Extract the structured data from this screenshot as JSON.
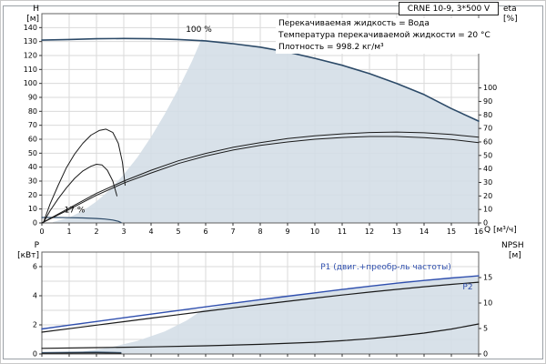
{
  "title_box": {
    "label": "CRNE 10-9, 3*500 V"
  },
  "info_box": {
    "lines": [
      "Перекачиваемая жидкость = Вода",
      "Температура перекачиваемой жидкости = 20 °C",
      "Плотность = 998.2 кг/м³"
    ]
  },
  "axis_labels": {
    "h": [
      "H",
      "[м]"
    ],
    "eta": [
      "eta",
      "[%]"
    ],
    "p": [
      "P",
      "[кВт]"
    ],
    "npsh": [
      "NPSH",
      "[м]"
    ],
    "q": "Q [м³/ч]"
  },
  "colors": {
    "grid": "#dadada",
    "axis": "#606060",
    "envelope": "#d3dde6",
    "curve_dark_blue": "#2c4a68",
    "curve_black": "#1a1a1a",
    "curve_blue": "#2f4fae"
  },
  "chart_data": [
    {
      "name": "hq-chart",
      "type": "line",
      "show_x_labels": true,
      "x": {
        "label": "Q [м³/ч]",
        "min": 0,
        "max": 16,
        "ticks": [
          0,
          1,
          2,
          3,
          4,
          5,
          6,
          7,
          8,
          9,
          10,
          11,
          12,
          13,
          14,
          15,
          16
        ],
        "grid": [
          1,
          2,
          3,
          4,
          5,
          6,
          7,
          8,
          9,
          10,
          11,
          12,
          13,
          14,
          15
        ]
      },
      "y_left": {
        "label": "H [м]",
        "min": 0,
        "max": 150,
        "ticks": [
          0,
          10,
          20,
          30,
          40,
          50,
          60,
          70,
          80,
          90,
          100,
          110,
          120,
          130,
          140
        ],
        "grid": [
          10,
          20,
          30,
          40,
          50,
          60,
          70,
          80,
          90,
          100,
          110,
          120,
          130,
          140
        ]
      },
      "y_right": {
        "label": "eta [%]",
        "min": 0,
        "max": 155,
        "ticks": [
          0,
          10,
          20,
          30,
          40,
          50,
          60,
          70,
          80,
          90,
          100
        ]
      },
      "envelope": [
        [
          0.4,
          0
        ],
        [
          0.4,
          0.6
        ],
        [
          1,
          3.9
        ],
        [
          1.5,
          8.7
        ],
        [
          2,
          15.4
        ],
        [
          2.5,
          24
        ],
        [
          3,
          34.7
        ],
        [
          3.5,
          47
        ],
        [
          4,
          61.6
        ],
        [
          4.5,
          78
        ],
        [
          5,
          96
        ],
        [
          5.5,
          116
        ],
        [
          5.85,
          131.8
        ],
        [
          6,
          130.5
        ],
        [
          7,
          128.5
        ],
        [
          8,
          126
        ],
        [
          9,
          122.5
        ],
        [
          10,
          118
        ],
        [
          11,
          113
        ],
        [
          12,
          107
        ],
        [
          13,
          100
        ],
        [
          14,
          92
        ],
        [
          15,
          82
        ],
        [
          16,
          73
        ],
        [
          16,
          0
        ]
      ],
      "series": [
        {
          "name": "head-100pct",
          "axis": "left",
          "color": "#2c4a68",
          "width": 1.6,
          "points": [
            [
              0,
              131
            ],
            [
              1,
              131.5
            ],
            [
              2,
              132
            ],
            [
              3,
              132.2
            ],
            [
              4,
              132
            ],
            [
              5,
              131.5
            ],
            [
              6,
              130.5
            ],
            [
              7,
              128.5
            ],
            [
              8,
              126
            ],
            [
              9,
              122.5
            ],
            [
              10,
              118
            ],
            [
              11,
              113
            ],
            [
              12,
              107
            ],
            [
              13,
              100
            ],
            [
              14,
              92
            ],
            [
              15,
              82
            ],
            [
              16,
              73
            ]
          ]
        },
        {
          "name": "head-17pct",
          "axis": "left",
          "color": "#2c4a68",
          "width": 1.2,
          "points": [
            [
              0,
              3.9
            ],
            [
              0.5,
              3.9
            ],
            [
              1,
              3.8
            ],
            [
              1.5,
              3.6
            ],
            [
              2,
              3.2
            ],
            [
              2.3,
              2.8
            ],
            [
              2.6,
              2.1
            ],
            [
              2.8,
              1.2
            ],
            [
              2.9,
              0.3
            ]
          ]
        },
        {
          "name": "eta-pump",
          "axis": "right",
          "color": "#1a1a1a",
          "width": 1,
          "points": [
            [
              0,
              0
            ],
            [
              1,
              11
            ],
            [
              2,
              22
            ],
            [
              3,
              31
            ],
            [
              4,
              39
            ],
            [
              5,
              46
            ],
            [
              6,
              51.5
            ],
            [
              7,
              56
            ],
            [
              8,
              59.5
            ],
            [
              9,
              62.5
            ],
            [
              10,
              64.5
            ],
            [
              11,
              66
            ],
            [
              12,
              67
            ],
            [
              13,
              67.3
            ],
            [
              14,
              66.8
            ],
            [
              15,
              65.5
            ],
            [
              16,
              63.5
            ]
          ]
        },
        {
          "name": "eta-total",
          "axis": "right",
          "color": "#1a1a1a",
          "width": 1,
          "points": [
            [
              0,
              0
            ],
            [
              1,
              10
            ],
            [
              2,
              20.5
            ],
            [
              3,
              29.5
            ],
            [
              4,
              37
            ],
            [
              5,
              44
            ],
            [
              6,
              49.5
            ],
            [
              7,
              54
            ],
            [
              8,
              57.5
            ],
            [
              9,
              60
            ],
            [
              10,
              62
            ],
            [
              11,
              63.3
            ],
            [
              12,
              64
            ],
            [
              13,
              64
            ],
            [
              14,
              63.2
            ],
            [
              15,
              61.8
            ],
            [
              16,
              59.5
            ]
          ]
        },
        {
          "name": "eta-duty-upper",
          "axis": "right",
          "color": "#1a1a1a",
          "width": 1,
          "points": [
            [
              0.05,
              0
            ],
            [
              0.3,
              14
            ],
            [
              0.6,
              28
            ],
            [
              0.9,
              41
            ],
            [
              1.2,
              51
            ],
            [
              1.5,
              59
            ],
            [
              1.8,
              65
            ],
            [
              2.1,
              68.5
            ],
            [
              2.35,
              69.5
            ],
            [
              2.6,
              67
            ],
            [
              2.8,
              59
            ],
            [
              2.95,
              45
            ],
            [
              3.05,
              28
            ]
          ]
        },
        {
          "name": "eta-duty-lower",
          "axis": "right",
          "color": "#1a1a1a",
          "width": 1,
          "points": [
            [
              0.05,
              0
            ],
            [
              0.3,
              9
            ],
            [
              0.6,
              18
            ],
            [
              0.9,
              26
            ],
            [
              1.2,
              33
            ],
            [
              1.5,
              38.5
            ],
            [
              1.8,
              42
            ],
            [
              2,
              43.5
            ],
            [
              2.2,
              43
            ],
            [
              2.4,
              39
            ],
            [
              2.6,
              31
            ],
            [
              2.75,
              20
            ]
          ]
        }
      ],
      "annotations": [
        {
          "text": "100 %",
          "q": 5.75,
          "v": 137,
          "axis": "left",
          "color": "#000000",
          "anchor": "middle"
        },
        {
          "text": "17 %",
          "q": 1.2,
          "v": 7.5,
          "axis": "left",
          "color": "#000000",
          "anchor": "middle"
        }
      ]
    },
    {
      "name": "power-npsh-chart",
      "type": "line",
      "show_x_labels": false,
      "x": {
        "label": "Q [м³/ч]",
        "min": 0,
        "max": 16,
        "ticks": [
          0,
          1,
          2,
          3,
          4,
          5,
          6,
          7,
          8,
          9,
          10,
          11,
          12,
          13,
          14,
          15,
          16
        ],
        "grid": [
          1,
          2,
          3,
          4,
          5,
          6,
          7,
          8,
          9,
          10,
          11,
          12,
          13,
          14,
          15
        ]
      },
      "y_left": {
        "label": "P [кВт]",
        "min": 0,
        "max": 7,
        "ticks": [
          0,
          2,
          4,
          6
        ],
        "grid": [
          1,
          2,
          3,
          4,
          5,
          6
        ]
      },
      "y_right": {
        "label": "NPSH [м]",
        "min": 0,
        "max": 20,
        "ticks": [
          0,
          5,
          10,
          15
        ]
      },
      "envelope": [
        [
          0.4,
          0
        ],
        [
          0.8,
          0.06
        ],
        [
          1.5,
          0.16
        ],
        [
          2.5,
          0.45
        ],
        [
          3.5,
          0.9
        ],
        [
          4.5,
          1.55
        ],
        [
          5.3,
          2.3
        ],
        [
          5.9,
          3.05
        ],
        [
          7,
          3.49
        ],
        [
          8,
          3.73
        ],
        [
          9,
          3.97
        ],
        [
          10,
          4.2
        ],
        [
          11,
          4.43
        ],
        [
          12,
          4.65
        ],
        [
          13,
          4.86
        ],
        [
          14,
          5.05
        ],
        [
          15,
          5.22
        ],
        [
          16,
          5.37
        ],
        [
          16,
          0
        ]
      ],
      "series": [
        {
          "name": "p1-curve",
          "axis": "left",
          "color": "#2f4fae",
          "width": 1.4,
          "points": [
            [
              0,
              1.72
            ],
            [
              1,
              1.98
            ],
            [
              2,
              2.23
            ],
            [
              3,
              2.49
            ],
            [
              4,
              2.74
            ],
            [
              5,
              2.99
            ],
            [
              6,
              3.24
            ],
            [
              7,
              3.49
            ],
            [
              8,
              3.73
            ],
            [
              9,
              3.97
            ],
            [
              10,
              4.2
            ],
            [
              11,
              4.43
            ],
            [
              12,
              4.65
            ],
            [
              13,
              4.86
            ],
            [
              14,
              5.05
            ],
            [
              15,
              5.22
            ],
            [
              16,
              5.37
            ]
          ]
        },
        {
          "name": "p2-curve",
          "axis": "left",
          "color": "#1a1a1a",
          "width": 1.2,
          "points": [
            [
              0,
              1.5
            ],
            [
              1,
              1.74
            ],
            [
              2,
              1.98
            ],
            [
              3,
              2.22
            ],
            [
              4,
              2.46
            ],
            [
              5,
              2.7
            ],
            [
              6,
              2.94
            ],
            [
              7,
              3.17
            ],
            [
              8,
              3.4
            ],
            [
              9,
              3.62
            ],
            [
              10,
              3.84
            ],
            [
              11,
              4.05
            ],
            [
              12,
              4.25
            ],
            [
              13,
              4.44
            ],
            [
              14,
              4.62
            ],
            [
              15,
              4.78
            ],
            [
              16,
              4.93
            ]
          ]
        },
        {
          "name": "npsh-curve",
          "axis": "right",
          "color": "#1a1a1a",
          "width": 1.2,
          "points": [
            [
              0,
              1.1
            ],
            [
              2,
              1.25
            ],
            [
              4,
              1.4
            ],
            [
              6,
              1.6
            ],
            [
              8,
              1.9
            ],
            [
              10,
              2.3
            ],
            [
              11,
              2.6
            ],
            [
              12,
              3.0
            ],
            [
              13,
              3.5
            ],
            [
              14,
              4.1
            ],
            [
              15,
              4.9
            ],
            [
              16,
              5.9
            ]
          ]
        },
        {
          "name": "p1-17pct",
          "axis": "left",
          "color": "#2c4a68",
          "width": 1,
          "points": [
            [
              0,
              0.1
            ],
            [
              1,
              0.12
            ],
            [
              2,
              0.13
            ],
            [
              2.9,
              0.1
            ]
          ]
        },
        {
          "name": "p2-17pct",
          "axis": "left",
          "color": "#1a1a1a",
          "width": 1,
          "points": [
            [
              0,
              0.05
            ],
            [
              1,
              0.06
            ],
            [
              2,
              0.07
            ],
            [
              2.9,
              0.05
            ]
          ]
        }
      ],
      "annotations": [
        {
          "text": "P1 (двиг.+преобр-ль частоты)",
          "q": 12.6,
          "v": 5.8,
          "axis": "left",
          "color": "#2f4fae",
          "anchor": "middle"
        },
        {
          "text": "P2",
          "q": 15.6,
          "v": 4.45,
          "axis": "left",
          "color": "#2f4fae",
          "anchor": "middle"
        }
      ]
    }
  ]
}
